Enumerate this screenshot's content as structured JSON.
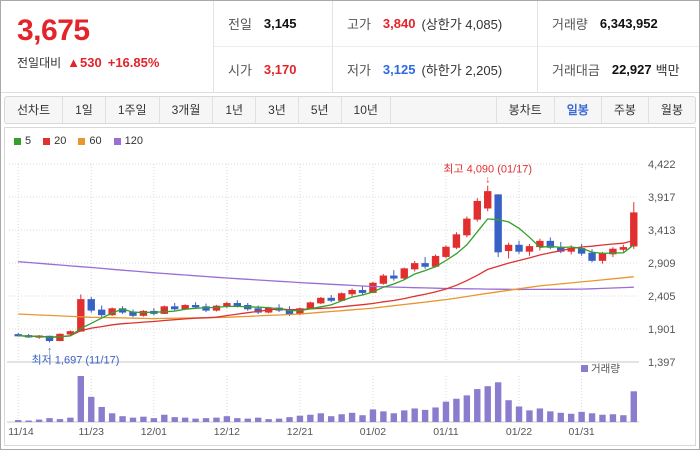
{
  "header": {
    "price": "3,675",
    "change_label": "전일대비",
    "change_value": "▲530",
    "change_percent": "+16.85%",
    "stats": {
      "prev_label": "전일",
      "prev_value": "3,145",
      "open_label": "시가",
      "open_value": "3,170",
      "high_label": "고가",
      "high_value": "3,840",
      "high_limit": "(상한가 4,085)",
      "low_label": "저가",
      "low_value": "3,125",
      "low_limit": "(하한가 2,205)",
      "volume_label": "거래량",
      "volume_value": "6,343,952",
      "amount_label": "거래대금",
      "amount_value": "22,927",
      "amount_unit": "백만"
    }
  },
  "toolbar": {
    "left": [
      {
        "id": "line-chart",
        "label": "선차트"
      },
      {
        "id": "period-1d",
        "label": "1일"
      },
      {
        "id": "period-1w",
        "label": "1주일"
      },
      {
        "id": "period-3m",
        "label": "3개월"
      },
      {
        "id": "period-1y",
        "label": "1년"
      },
      {
        "id": "period-3y",
        "label": "3년"
      },
      {
        "id": "period-5y",
        "label": "5년"
      },
      {
        "id": "period-10y",
        "label": "10년"
      }
    ],
    "right": [
      {
        "id": "candle-chart",
        "label": "봉차트"
      },
      {
        "id": "candle-daily",
        "label": "일봉",
        "selected": true
      },
      {
        "id": "candle-weekly",
        "label": "주봉"
      },
      {
        "id": "candle-monthly",
        "label": "월봉"
      }
    ],
    "selected": "일봉"
  },
  "chart_data": {
    "type": "candlestick",
    "ylim": [
      1397,
      4422
    ],
    "y_ticks": [
      {
        "v": 4422,
        "label": "4,422"
      },
      {
        "v": 3917,
        "label": "3,917"
      },
      {
        "v": 3413,
        "label": "3,413"
      },
      {
        "v": 2909,
        "label": "2,909"
      },
      {
        "v": 2405,
        "label": "2,405"
      },
      {
        "v": 1901,
        "label": "1,901"
      },
      {
        "v": 1397,
        "label": "1,397"
      }
    ],
    "x_labels": [
      {
        "i": 0,
        "label": "11/14"
      },
      {
        "i": 7,
        "label": "11/23"
      },
      {
        "i": 13,
        "label": "12/01"
      },
      {
        "i": 20,
        "label": "12/12"
      },
      {
        "i": 27,
        "label": "12/21"
      },
      {
        "i": 34,
        "label": "01/02"
      },
      {
        "i": 41,
        "label": "01/11"
      },
      {
        "i": 48,
        "label": "01/22"
      },
      {
        "i": 54,
        "label": "01/31"
      }
    ],
    "candles": [
      [
        1815,
        1840,
        1785,
        1800
      ],
      [
        1800,
        1825,
        1765,
        1780
      ],
      [
        1780,
        1810,
        1750,
        1795
      ],
      [
        1790,
        1800,
        1697,
        1725
      ],
      [
        1725,
        1835,
        1715,
        1820
      ],
      [
        1825,
        1880,
        1800,
        1860
      ],
      [
        1870,
        2430,
        1860,
        2350
      ],
      [
        2350,
        2390,
        2150,
        2190
      ],
      [
        2190,
        2260,
        2080,
        2120
      ],
      [
        2120,
        2230,
        2100,
        2210
      ],
      [
        2210,
        2250,
        2130,
        2160
      ],
      [
        2160,
        2200,
        2080,
        2110
      ],
      [
        2110,
        2190,
        2090,
        2170
      ],
      [
        2170,
        2220,
        2110,
        2140
      ],
      [
        2140,
        2260,
        2130,
        2240
      ],
      [
        2240,
        2300,
        2180,
        2210
      ],
      [
        2210,
        2280,
        2190,
        2260
      ],
      [
        2260,
        2310,
        2210,
        2240
      ],
      [
        2240,
        2290,
        2160,
        2190
      ],
      [
        2190,
        2270,
        2170,
        2250
      ],
      [
        2250,
        2320,
        2220,
        2290
      ],
      [
        2290,
        2340,
        2230,
        2260
      ],
      [
        2260,
        2300,
        2180,
        2210
      ],
      [
        2210,
        2260,
        2130,
        2160
      ],
      [
        2160,
        2240,
        2140,
        2220
      ],
      [
        2220,
        2280,
        2160,
        2190
      ],
      [
        2190,
        2250,
        2100,
        2130
      ],
      [
        2130,
        2230,
        2110,
        2210
      ],
      [
        2210,
        2320,
        2200,
        2300
      ],
      [
        2300,
        2390,
        2280,
        2370
      ],
      [
        2370,
        2420,
        2310,
        2340
      ],
      [
        2340,
        2460,
        2330,
        2440
      ],
      [
        2440,
        2520,
        2400,
        2490
      ],
      [
        2490,
        2560,
        2430,
        2460
      ],
      [
        2460,
        2620,
        2450,
        2600
      ],
      [
        2600,
        2740,
        2580,
        2710
      ],
      [
        2710,
        2800,
        2640,
        2680
      ],
      [
        2680,
        2840,
        2660,
        2820
      ],
      [
        2820,
        2940,
        2780,
        2900
      ],
      [
        2900,
        3000,
        2820,
        2860
      ],
      [
        2860,
        3040,
        2840,
        3010
      ],
      [
        3010,
        3180,
        2980,
        3150
      ],
      [
        3150,
        3380,
        3120,
        3340
      ],
      [
        3340,
        3620,
        3300,
        3580
      ],
      [
        3580,
        3900,
        3540,
        3850
      ],
      [
        3750,
        4090,
        3700,
        4000
      ],
      [
        3950,
        3960,
        3000,
        3080
      ],
      [
        3100,
        3220,
        2980,
        3180
      ],
      [
        3180,
        3250,
        3050,
        3090
      ],
      [
        3090,
        3200,
        3020,
        3160
      ],
      [
        3160,
        3280,
        3100,
        3240
      ],
      [
        3240,
        3300,
        3120,
        3150
      ],
      [
        3150,
        3230,
        3060,
        3090
      ],
      [
        3090,
        3180,
        3040,
        3130
      ],
      [
        3130,
        3200,
        3020,
        3060
      ],
      [
        3060,
        3120,
        2920,
        2950
      ],
      [
        2950,
        3080,
        2900,
        3050
      ],
      [
        3050,
        3150,
        3000,
        3120
      ],
      [
        3120,
        3190,
        3080,
        3145
      ],
      [
        3170,
        3840,
        3125,
        3675
      ]
    ],
    "volume_millions": [
      0.4,
      0.3,
      0.5,
      0.8,
      0.6,
      0.9,
      9.5,
      5.2,
      3.1,
      1.8,
      1.2,
      0.9,
      1.1,
      0.8,
      1.5,
      1.0,
      0.9,
      0.7,
      0.8,
      0.9,
      1.2,
      0.8,
      0.7,
      0.9,
      0.6,
      0.7,
      1.0,
      1.3,
      1.5,
      1.8,
      1.2,
      1.6,
      1.9,
      1.4,
      2.6,
      2.2,
      1.8,
      2.4,
      2.8,
      2.5,
      3.0,
      4.2,
      4.8,
      5.5,
      6.8,
      7.4,
      8.2,
      4.5,
      3.2,
      2.4,
      2.8,
      2.2,
      1.9,
      1.7,
      2.1,
      1.8,
      1.5,
      1.6,
      1.4,
      6.34
    ],
    "ma60_points": [
      [
        0,
        2130
      ],
      [
        7,
        2080
      ],
      [
        13,
        2060
      ],
      [
        20,
        2080
      ],
      [
        27,
        2130
      ],
      [
        34,
        2220
      ],
      [
        41,
        2350
      ],
      [
        46,
        2470
      ],
      [
        50,
        2560
      ],
      [
        54,
        2620
      ],
      [
        59,
        2700
      ]
    ],
    "ma120_points": [
      [
        0,
        2930
      ],
      [
        7,
        2840
      ],
      [
        13,
        2760
      ],
      [
        20,
        2680
      ],
      [
        27,
        2610
      ],
      [
        34,
        2550
      ],
      [
        41,
        2520
      ],
      [
        48,
        2505
      ],
      [
        54,
        2510
      ],
      [
        59,
        2540
      ]
    ],
    "legend": [
      {
        "id": "ma5",
        "label": "5",
        "color": "#33a02c"
      },
      {
        "id": "ma20",
        "label": "20",
        "color": "#e03131"
      },
      {
        "id": "ma60",
        "label": "60",
        "color": "#e8972e"
      },
      {
        "id": "ma120",
        "label": "120",
        "color": "#9a6dd7"
      }
    ],
    "volume_legend": {
      "label": "거래량",
      "color": "#8b7cce"
    },
    "annotations": {
      "high": {
        "text": "최고 4,090 (01/17)",
        "index": 45,
        "value": 4090,
        "color": "#e12f2f",
        "arrow": "↓"
      },
      "low": {
        "text": "최저 1,697 (11/17)",
        "index": 3,
        "value": 1697,
        "color": "#3861c5",
        "arrow": "↑"
      }
    },
    "colors": {
      "up": "#e12f2f",
      "down": "#3861c5",
      "ma5": "#33a02c",
      "ma20": "#e03131",
      "ma60": "#e8972e",
      "ma120": "#9a6dd7",
      "volume": "#8b7cce",
      "grid": "#d9d9d9",
      "axis": "#c9c9c9",
      "tick_text": "#555555"
    }
  }
}
